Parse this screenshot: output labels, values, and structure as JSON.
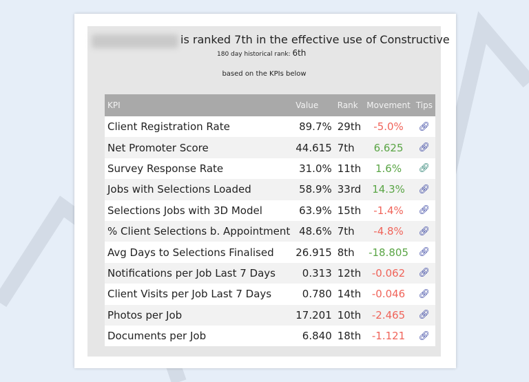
{
  "header": {
    "title": "is ranked 7th in the effective use of Constructive",
    "historical_label": "180 day historical rank:",
    "historical_rank": "6th",
    "subtitle": "based on the KPIs below"
  },
  "table": {
    "columns": [
      "KPI",
      "Value",
      "Rank",
      "Movement",
      "Tips"
    ],
    "rows": [
      {
        "kpi": "Client Registration Rate",
        "value": "89.7%",
        "rank": "29th",
        "movement": "-5.0%",
        "trend": "neg"
      },
      {
        "kpi": "Net Promoter Score",
        "value": "44.615",
        "rank": "7th",
        "movement": "6.625",
        "trend": "pos"
      },
      {
        "kpi": "Survey Response Rate",
        "value": "31.0%",
        "rank": "11th",
        "movement": "1.6%",
        "trend": "pos"
      },
      {
        "kpi": "Jobs with Selections Loaded",
        "value": "58.9%",
        "rank": "33rd",
        "movement": "14.3%",
        "trend": "pos"
      },
      {
        "kpi": "Selections Jobs with 3D Model",
        "value": "63.9%",
        "rank": "15th",
        "movement": "-1.4%",
        "trend": "neg"
      },
      {
        "kpi": "% Client Selections b. Appointment",
        "value": "48.6%",
        "rank": "7th",
        "movement": "-4.8%",
        "trend": "neg"
      },
      {
        "kpi": "Avg Days to Selections Finalised",
        "value": "26.915",
        "rank": "8th",
        "movement": "-18.805",
        "trend": "pos"
      },
      {
        "kpi": "Notifications per Job Last 7 Days",
        "value": "0.313",
        "rank": "12th",
        "movement": "-0.062",
        "trend": "neg"
      },
      {
        "kpi": "Client Visits per Job Last 7 Days",
        "value": "0.780",
        "rank": "14th",
        "movement": "-0.046",
        "trend": "neg"
      },
      {
        "kpi": "Photos per Job",
        "value": "17.201",
        "rank": "10th",
        "movement": "-2.465",
        "trend": "neg"
      },
      {
        "kpi": "Documents per Job",
        "value": "6.840",
        "rank": "18th",
        "movement": "-1.121",
        "trend": "neg"
      }
    ]
  },
  "colors": {
    "negative": "#f0645a",
    "positive": "#5aa545",
    "link": "#2d3a9c"
  }
}
